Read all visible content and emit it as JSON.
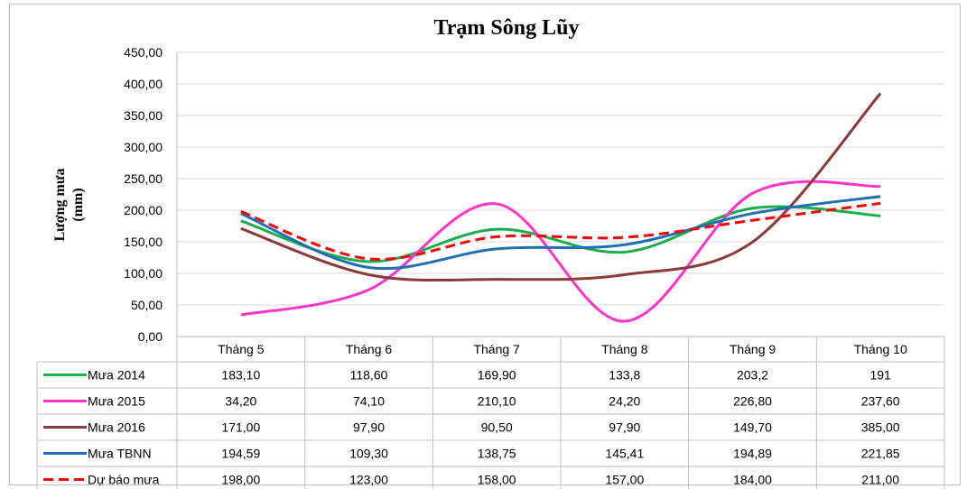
{
  "chart_data": {
    "type": "line",
    "title": "Trạm Sông Lũy",
    "ylabel_lines": [
      "Lượng mưa",
      "(mm)"
    ],
    "xlabel": "",
    "ylim": [
      0,
      450
    ],
    "yticks": [
      "0,00",
      "50,00",
      "100,00",
      "150,00",
      "200,00",
      "250,00",
      "300,00",
      "350,00",
      "400,00",
      "450,00"
    ],
    "categories": [
      "Tháng 5",
      "Tháng 6",
      "Tháng 7",
      "Tháng 8",
      "Tháng 9",
      "Tháng 10"
    ],
    "grid": true,
    "legend": "data-table",
    "series": [
      {
        "name": "Mưa 2014",
        "color": "#1aae4f",
        "dashed": false,
        "values": [
          183.1,
          118.6,
          169.9,
          133.8,
          203.2,
          191
        ],
        "labels": [
          "183,10",
          "118,60",
          "169,90",
          "133,8",
          "203,2",
          "191"
        ]
      },
      {
        "name": "Mưa 2015",
        "color": "#ff33cc",
        "dashed": false,
        "values": [
          34.2,
          74.1,
          210.1,
          24.2,
          226.8,
          237.6
        ],
        "labels": [
          "34,20",
          "74,10",
          "210,10",
          "24,20",
          "226,80",
          "237,60"
        ]
      },
      {
        "name": "Mưa 2016",
        "color": "#8b3a3a",
        "dashed": false,
        "values": [
          171.0,
          97.9,
          90.5,
          97.9,
          149.7,
          385.0
        ],
        "labels": [
          "171,00",
          "97,90",
          "90,50",
          "97,90",
          "149,70",
          "385,00"
        ]
      },
      {
        "name": "Mưa TBNN",
        "color": "#1f6fb5",
        "dashed": false,
        "values": [
          194.59,
          109.3,
          138.75,
          145.41,
          194.89,
          221.85
        ],
        "labels": [
          "194,59",
          "109,30",
          "138,75",
          "145,41",
          "194,89",
          "221,85"
        ]
      },
      {
        "name": "Dự báo mưa",
        "color": "#ff0000",
        "dashed": true,
        "values": [
          198.0,
          123.0,
          158.0,
          157.0,
          184.0,
          211.0
        ],
        "labels": [
          "198,00",
          "123,00",
          "158,00",
          "157,00",
          "184,00",
          "211,00"
        ]
      }
    ]
  }
}
